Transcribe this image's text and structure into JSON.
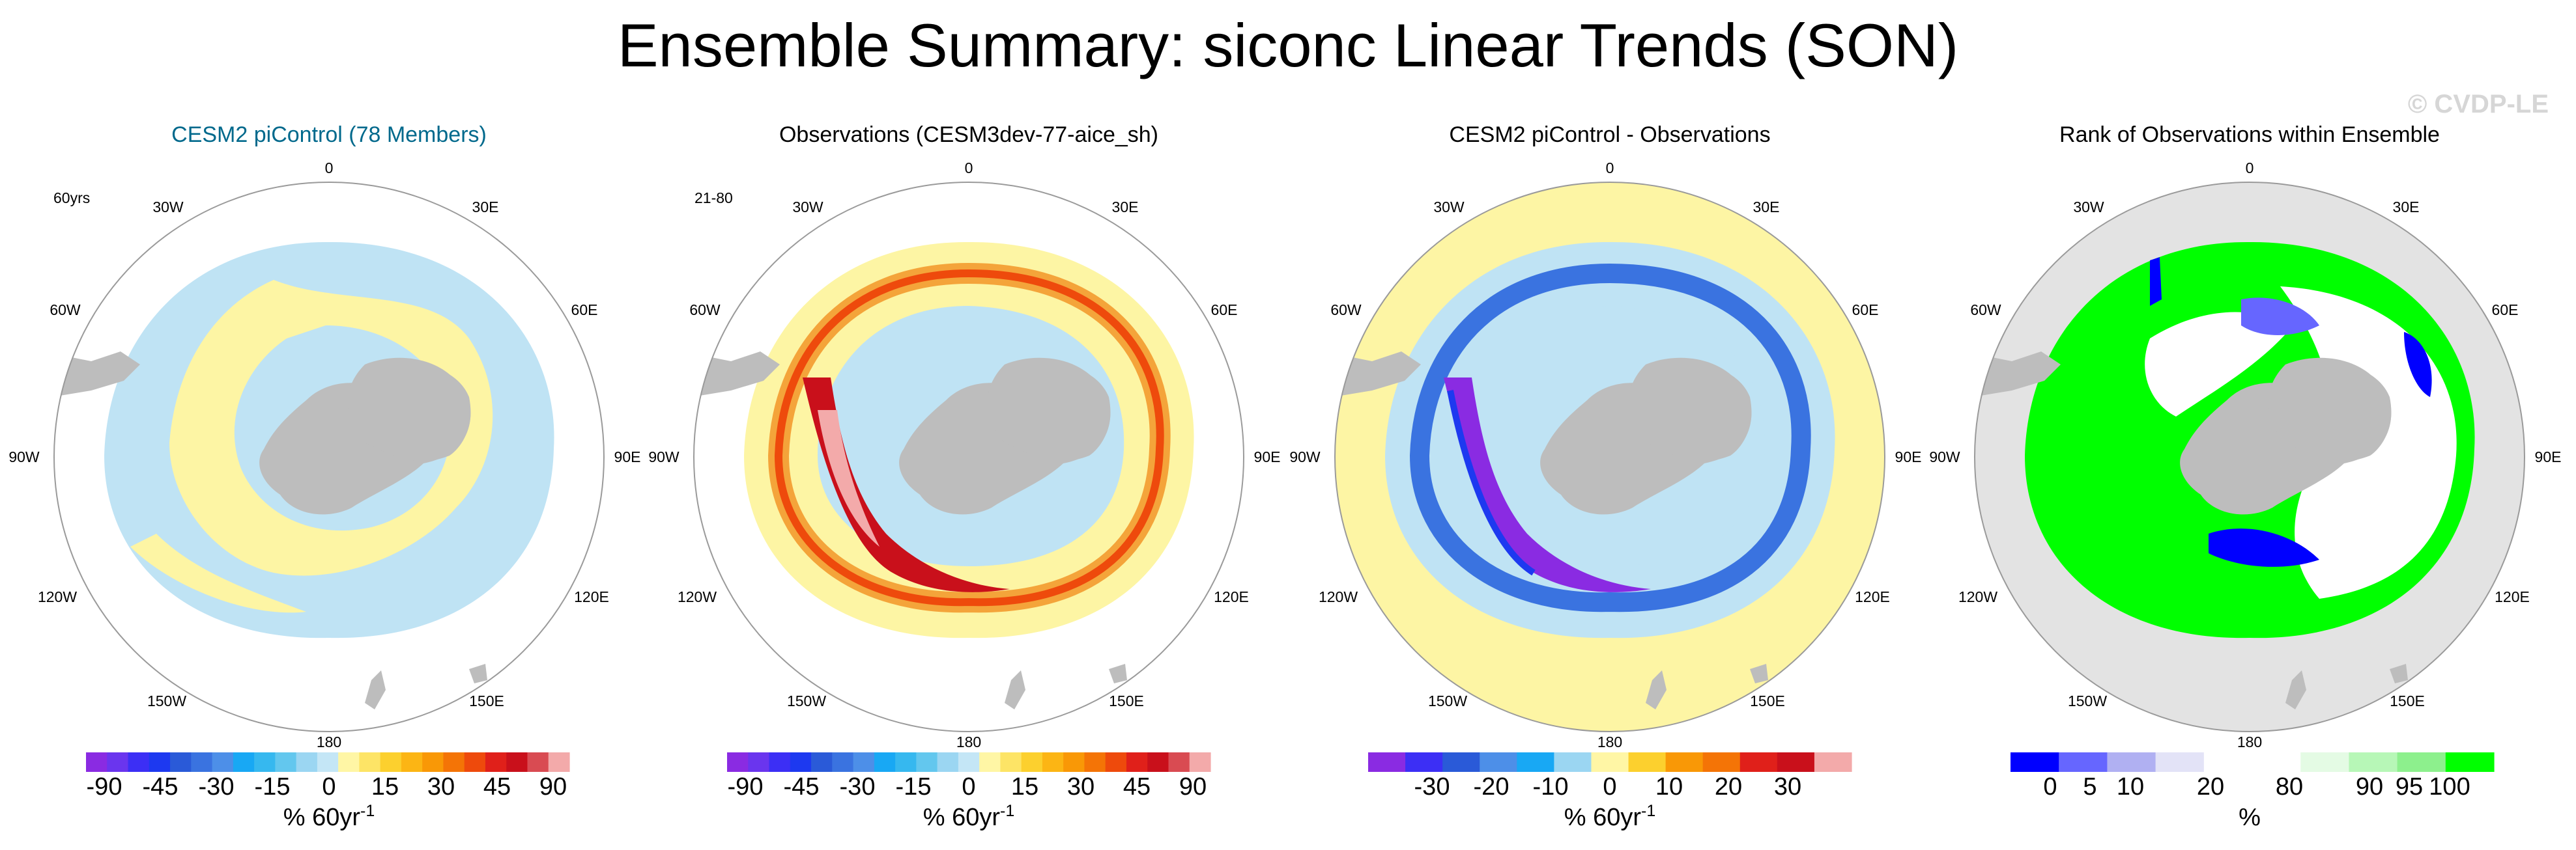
{
  "title": "Ensemble Summary: siconc Linear Trends (SON)",
  "watermark": "© CVDP-LE",
  "colors": {
    "land": "#bdbdbd",
    "ocean_out": "#e3e3e3",
    "pos_small": "#fdf5a4",
    "neg_small": "#bfe3f4",
    "title_blue": "#00698c"
  },
  "trend_palette_fine": [
    "#8a2be2",
    "#6a35ee",
    "#3c2ff5",
    "#1d39f0",
    "#2a5ad8",
    "#3a73e0",
    "#4d8fe8",
    "#18a8f4",
    "#36b8ef",
    "#63c7ee",
    "#9bd6f2",
    "#c4e6f6",
    "#fff6a5",
    "#fde466",
    "#fcd02e",
    "#fcb514",
    "#f99806",
    "#f47406",
    "#ee4a0c",
    "#e0201a",
    "#c9101b",
    "#d94b52",
    "#f3aaaa"
  ],
  "trend_palette_coarse": [
    "#8a2be2",
    "#3c2ff5",
    "#2a5ad8",
    "#4d8fe8",
    "#18a8f4",
    "#9bd6f2",
    "#fff6a5",
    "#fcd02e",
    "#f99806",
    "#f47406",
    "#e0201a",
    "#c9101b",
    "#f3aaaa"
  ],
  "rank_palette": [
    "#0000ff",
    "#6666ff",
    "#b0b0f2",
    "#e3e3f7",
    "#ffffff",
    "#ffffff",
    "#e4fbe4",
    "#b7f7b7",
    "#8df08d",
    "#00ff00"
  ],
  "chart_data": [
    {
      "type": "polar-map",
      "title": "CESM2 piControl (78 Members)",
      "corner_label": "60yrs",
      "longitude_labels": [
        "0",
        "30E",
        "60E",
        "90E",
        "120E",
        "150E",
        "180",
        "150W",
        "120W",
        "90W",
        "60W",
        "30W"
      ],
      "colorbar": {
        "ticks": [
          "-90",
          "-45",
          "-30",
          "-15",
          "0",
          "15",
          "30",
          "45",
          "90"
        ],
        "units": "% 60yr",
        "units_superscript": "-1"
      }
    },
    {
      "type": "polar-map",
      "title": "Observations (CESM3dev-77-aice_sh)",
      "corner_label": "21-80",
      "longitude_labels": [
        "0",
        "30E",
        "60E",
        "90E",
        "120E",
        "150E",
        "180",
        "150W",
        "120W",
        "90W",
        "60W",
        "30W"
      ],
      "colorbar": {
        "ticks": [
          "-90",
          "-45",
          "-30",
          "-15",
          "0",
          "15",
          "30",
          "45",
          "90"
        ],
        "units": "% 60yr",
        "units_superscript": "-1"
      }
    },
    {
      "type": "polar-map",
      "title": "CESM2 piControl - Observations",
      "corner_label": "",
      "longitude_labels": [
        "0",
        "30E",
        "60E",
        "90E",
        "120E",
        "150E",
        "180",
        "150W",
        "120W",
        "90W",
        "60W",
        "30W"
      ],
      "colorbar": {
        "ticks": [
          "-30",
          "-20",
          "-10",
          "0",
          "10",
          "20",
          "30"
        ],
        "units": "% 60yr",
        "units_superscript": "-1"
      }
    },
    {
      "type": "polar-map",
      "title": "Rank of Observations within Ensemble",
      "corner_label": "",
      "longitude_labels": [
        "0",
        "30E",
        "60E",
        "90E",
        "120E",
        "150E",
        "180",
        "150W",
        "120W",
        "90W",
        "60W",
        "30W"
      ],
      "colorbar": {
        "ticks": [
          "0",
          "5",
          "10",
          "20",
          "80",
          "90",
          "95",
          "100"
        ],
        "units": "%",
        "units_superscript": ""
      }
    }
  ]
}
